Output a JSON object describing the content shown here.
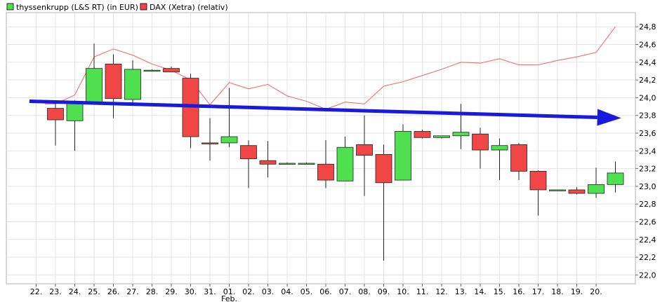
{
  "chart_data": {
    "type": "candlestick",
    "legend": [
      {
        "label": "thyssenkrupp (L&S RT) (in EUR)",
        "color": "#4ee04e"
      },
      {
        "label": "DAX (Xetra) (relativ)",
        "color": "#f04646"
      }
    ],
    "x_ticks": [
      "22.",
      "23.",
      "24.",
      "25.",
      "26.",
      "27.",
      "28.",
      "29.",
      "30.",
      "31.",
      "01.",
      "02.",
      "03.",
      "04.",
      "05.",
      "06.",
      "07.",
      "08.",
      "09.",
      "10.",
      "11.",
      "12.",
      "13.",
      "14.",
      "15.",
      "16.",
      "17.",
      "18.",
      "19.",
      "20."
    ],
    "x_month_label": {
      "at": "01.",
      "text": "Feb."
    },
    "y_ticks": [
      "22,0",
      "22,2",
      "22,4",
      "22,6",
      "22,8",
      "23,0",
      "23,2",
      "23,4",
      "23,6",
      "23,8",
      "24,0",
      "24,2",
      "24,4",
      "24,6",
      "24,8"
    ],
    "ylim": [
      21.9,
      24.96
    ],
    "grid": true,
    "legend_position": "top-left",
    "colors": {
      "up": "#4ee04e",
      "down": "#f04646",
      "dax_line": "#f07070",
      "trend_arrow": "#1a1adc",
      "grid": "#e3e3e3"
    },
    "candles": [
      {
        "x": "23.",
        "open": 23.88,
        "high": 23.97,
        "low": 23.46,
        "close": 23.75
      },
      {
        "x": "24.",
        "open": 23.74,
        "high": 23.97,
        "low": 23.4,
        "close": 23.94
      },
      {
        "x": "25.",
        "open": 23.94,
        "high": 24.61,
        "low": 23.94,
        "close": 24.33
      },
      {
        "x": "26.",
        "open": 24.38,
        "high": 24.49,
        "low": 23.77,
        "close": 23.99
      },
      {
        "x": "27.",
        "open": 23.98,
        "high": 24.42,
        "low": 23.94,
        "close": 24.32
      },
      {
        "x": "28.",
        "open": 24.31,
        "high": 24.32,
        "low": 24.3,
        "close": 24.31
      },
      {
        "x": "29.",
        "open": 24.33,
        "high": 24.35,
        "low": 24.29,
        "close": 24.29
      },
      {
        "x": "30.",
        "open": 24.22,
        "high": 24.27,
        "low": 23.43,
        "close": 23.56
      },
      {
        "x": "31.",
        "open": 23.49,
        "high": 23.77,
        "low": 23.29,
        "close": 23.48
      },
      {
        "x": "01.",
        "open": 23.49,
        "high": 24.11,
        "low": 23.44,
        "close": 23.56
      },
      {
        "x": "02.",
        "open": 23.46,
        "high": 23.52,
        "low": 22.98,
        "close": 23.31
      },
      {
        "x": "03.",
        "open": 23.29,
        "high": 23.51,
        "low": 23.1,
        "close": 23.25
      },
      {
        "x": "04.",
        "open": 23.26,
        "high": 23.27,
        "low": 23.25,
        "close": 23.26
      },
      {
        "x": "05.",
        "open": 23.26,
        "high": 23.27,
        "low": 23.25,
        "close": 23.26
      },
      {
        "x": "06.",
        "open": 23.25,
        "high": 23.52,
        "low": 22.98,
        "close": 23.07
      },
      {
        "x": "07.",
        "open": 23.06,
        "high": 23.56,
        "low": 23.06,
        "close": 23.44
      },
      {
        "x": "08.",
        "open": 23.47,
        "high": 23.8,
        "low": 22.89,
        "close": 23.35
      },
      {
        "x": "09.",
        "open": 23.36,
        "high": 23.47,
        "low": 22.16,
        "close": 23.04
      },
      {
        "x": "10.",
        "open": 23.07,
        "high": 23.7,
        "low": 23.07,
        "close": 23.62
      },
      {
        "x": "11.",
        "open": 23.62,
        "high": 23.64,
        "low": 23.54,
        "close": 23.55
      },
      {
        "x": "12.",
        "open": 23.55,
        "high": 23.57,
        "low": 23.54,
        "close": 23.57
      },
      {
        "x": "13.",
        "open": 23.57,
        "high": 23.93,
        "low": 23.42,
        "close": 23.61
      },
      {
        "x": "14.",
        "open": 23.59,
        "high": 23.66,
        "low": 23.2,
        "close": 23.41
      },
      {
        "x": "15.",
        "open": 23.41,
        "high": 23.54,
        "low": 23.07,
        "close": 23.46
      },
      {
        "x": "16.",
        "open": 23.47,
        "high": 23.49,
        "low": 23.07,
        "close": 23.17
      },
      {
        "x": "17.",
        "open": 23.17,
        "high": 23.18,
        "low": 22.67,
        "close": 22.96
      },
      {
        "x": "18.",
        "open": 22.96,
        "high": 22.96,
        "low": 22.95,
        "close": 22.96
      },
      {
        "x": "19.",
        "open": 22.96,
        "high": 22.99,
        "low": 22.91,
        "close": 22.92
      },
      {
        "x": "20.",
        "open": 22.92,
        "high": 23.21,
        "low": 22.87,
        "close": 23.02
      },
      {
        "x": "20+",
        "open": 23.02,
        "high": 23.28,
        "low": 22.93,
        "close": 23.15
      }
    ],
    "dax_series": [
      {
        "x": 0.45,
        "y": 23.93
      },
      {
        "x": 1,
        "y": 23.93
      },
      {
        "x": 2,
        "y": 24.03
      },
      {
        "x": 3,
        "y": 24.46
      },
      {
        "x": 4,
        "y": 24.55
      },
      {
        "x": 5,
        "y": 24.48
      },
      {
        "x": 6,
        "y": 24.38
      },
      {
        "x": 7,
        "y": 24.31
      },
      {
        "x": 8,
        "y": 24.2
      },
      {
        "x": 9,
        "y": 23.92
      },
      {
        "x": 10,
        "y": 24.17
      },
      {
        "x": 11,
        "y": 24.1
      },
      {
        "x": 12,
        "y": 24.15
      },
      {
        "x": 13,
        "y": 24.02
      },
      {
        "x": 14,
        "y": 23.96
      },
      {
        "x": 15,
        "y": 23.87
      },
      {
        "x": 16,
        "y": 23.95
      },
      {
        "x": 17,
        "y": 23.93
      },
      {
        "x": 18,
        "y": 24.13
      },
      {
        "x": 19,
        "y": 24.18
      },
      {
        "x": 20,
        "y": 24.25
      },
      {
        "x": 21,
        "y": 24.32
      },
      {
        "x": 22,
        "y": 24.4
      },
      {
        "x": 23,
        "y": 24.39
      },
      {
        "x": 24,
        "y": 24.44
      },
      {
        "x": 25,
        "y": 24.37
      },
      {
        "x": 26,
        "y": 24.37
      },
      {
        "x": 27,
        "y": 24.42
      },
      {
        "x": 28,
        "y": 24.46
      },
      {
        "x": 29,
        "y": 24.51
      },
      {
        "x": 30,
        "y": 24.8
      }
    ],
    "trend_arrow": {
      "x_start": -0.35,
      "y_start": 23.96,
      "x_end": 30.3,
      "y_end": 23.77
    }
  }
}
